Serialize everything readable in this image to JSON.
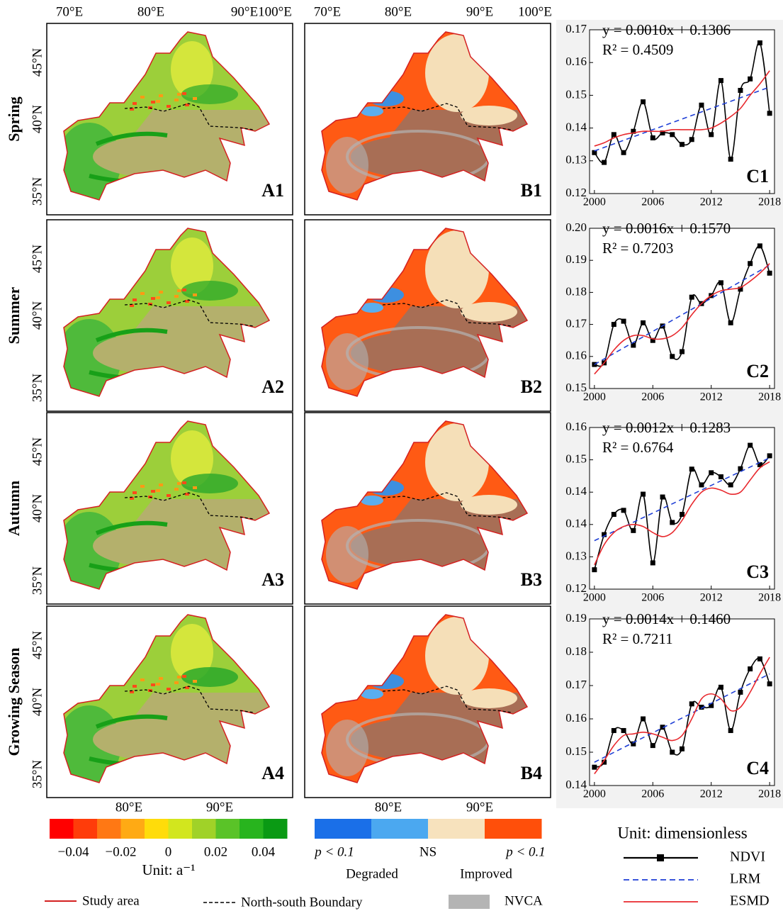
{
  "maps": {
    "top_lon": [
      "70°E",
      "80°E",
      "90°E",
      "100°E"
    ],
    "bottom_lon": [
      "80°E",
      "90°E"
    ],
    "lat": [
      "45°N",
      "40°N",
      "35°N"
    ],
    "rows": [
      {
        "season": "Spring",
        "a_label": "A1",
        "b_label": "B1"
      },
      {
        "season": "Summer",
        "a_label": "A2",
        "b_label": "B2"
      },
      {
        "season": "Autumn",
        "a_label": "A3",
        "b_label": "B3"
      },
      {
        "season": "Growing Season",
        "a_label": "A4",
        "b_label": "B4"
      }
    ]
  },
  "chart_data": [
    {
      "type": "line",
      "label": "C1",
      "equation": "y = 0.0010x + 0.1306",
      "r2": "R² = 0.4509",
      "x": [
        2000,
        2001,
        2002,
        2003,
        2004,
        2005,
        2006,
        2007,
        2008,
        2009,
        2010,
        2011,
        2012,
        2013,
        2014,
        2015,
        2016,
        2017,
        2018
      ],
      "xlim": [
        1999.5,
        2018.5
      ],
      "xticks": [
        2000,
        2006,
        2012,
        2018
      ],
      "ylim": [
        0.12,
        0.17
      ],
      "yticks": [
        0.12,
        0.13,
        0.14,
        0.15,
        0.16,
        0.17
      ],
      "series": [
        {
          "name": "NDVI",
          "color": "#000000",
          "values": [
            0.1325,
            0.1295,
            0.138,
            0.1325,
            0.139,
            0.148,
            0.137,
            0.1385,
            0.138,
            0.135,
            0.1365,
            0.147,
            0.138,
            0.1545,
            0.1305,
            0.1515,
            0.155,
            0.166,
            0.1445
          ]
        },
        {
          "name": "LRM",
          "color": "#1f3fd6",
          "x": [
            2000,
            2018
          ],
          "values": [
            0.133,
            0.1525
          ]
        },
        {
          "name": "ESMD",
          "color": "#e8282d",
          "values": [
            0.1345,
            0.1355,
            0.137,
            0.138,
            0.1385,
            0.139,
            0.139,
            0.139,
            0.1395,
            0.1395,
            0.1395,
            0.1395,
            0.14,
            0.1415,
            0.1435,
            0.146,
            0.15,
            0.1535,
            0.1575
          ]
        }
      ]
    },
    {
      "type": "line",
      "label": "C2",
      "equation": "y = 0.0016x + 0.1570",
      "r2": "R² = 0.7203",
      "x": [
        2000,
        2001,
        2002,
        2003,
        2004,
        2005,
        2006,
        2007,
        2008,
        2009,
        2010,
        2011,
        2012,
        2013,
        2014,
        2015,
        2016,
        2017,
        2018
      ],
      "xlim": [
        1999.5,
        2018.5
      ],
      "xticks": [
        2000,
        2006,
        2012,
        2018
      ],
      "ylim": [
        0.15,
        0.2
      ],
      "yticks": [
        0.15,
        0.16,
        0.17,
        0.18,
        0.19,
        {
          "value": 0.2,
          "label": "0.20"
        }
      ],
      "series": [
        {
          "name": "NDVI",
          "color": "#000000",
          "values": [
            0.1575,
            0.158,
            0.17,
            0.171,
            0.1635,
            0.1705,
            0.165,
            0.1695,
            0.16,
            0.1615,
            0.1785,
            0.1765,
            0.179,
            0.183,
            0.1705,
            0.181,
            0.189,
            0.1945,
            0.186
          ]
        },
        {
          "name": "LRM",
          "color": "#1f3fd6",
          "x": [
            2000,
            2018
          ],
          "values": [
            0.1575,
            0.1885
          ]
        },
        {
          "name": "ESMD",
          "color": "#e8282d",
          "values": [
            0.1545,
            0.158,
            0.162,
            0.165,
            0.1665,
            0.1665,
            0.1655,
            0.1655,
            0.1665,
            0.169,
            0.173,
            0.1765,
            0.179,
            0.1805,
            0.181,
            0.1815,
            0.1835,
            0.186,
            0.189
          ]
        }
      ]
    },
    {
      "type": "line",
      "label": "C3",
      "equation": "y = 0.0012x + 0.1283",
      "r2": "R² = 0.6764",
      "x": [
        2000,
        2001,
        2002,
        2003,
        2004,
        2005,
        2006,
        2007,
        2008,
        2009,
        2010,
        2011,
        2012,
        2013,
        2014,
        2015,
        2016,
        2017,
        2018
      ],
      "xlim": [
        1999.5,
        2018.5
      ],
      "xticks": [
        2000,
        2006,
        2012,
        2018
      ],
      "ylim": [
        0.12,
        0.16
      ],
      "yticks": [
        0.12,
        {
          "value": 0.128,
          "label": "0.13"
        },
        {
          "value": 0.136,
          "label": "0.14"
        },
        {
          "value": 0.144,
          "label": "0.14"
        },
        {
          "value": 0.152,
          "label": "0.15"
        },
        0.16
      ],
      "series": [
        {
          "name": "NDVI",
          "color": "#000000",
          "values": [
            0.1248,
            0.1335,
            0.1385,
            0.1395,
            0.1345,
            0.1435,
            0.1265,
            0.1428,
            0.1365,
            0.1385,
            0.1497,
            0.1458,
            0.1488,
            0.1478,
            0.1458,
            0.1498,
            0.1556,
            0.1508,
            0.153
          ]
        },
        {
          "name": "LRM",
          "color": "#1f3fd6",
          "x": [
            2000,
            2018
          ],
          "values": [
            0.132,
            0.1525
          ]
        },
        {
          "name": "ESMD",
          "color": "#e8282d",
          "values": [
            0.126,
            0.131,
            0.134,
            0.1355,
            0.136,
            0.1355,
            0.134,
            0.133,
            0.134,
            0.137,
            0.141,
            0.144,
            0.145,
            0.1445,
            0.1435,
            0.144,
            0.147,
            0.15,
            0.1515
          ]
        }
      ]
    },
    {
      "type": "line",
      "label": "C4",
      "equation": "y = 0.0014x + 0.1460",
      "r2": "R² = 0.7211",
      "x": [
        2000,
        2001,
        2002,
        2003,
        2004,
        2005,
        2006,
        2007,
        2008,
        2009,
        2010,
        2011,
        2012,
        2013,
        2014,
        2015,
        2016,
        2017,
        2018
      ],
      "xlim": [
        1999.5,
        2018.5
      ],
      "xticks": [
        2000,
        2006,
        2012,
        2018
      ],
      "ylim": [
        0.14,
        0.19
      ],
      "yticks": [
        0.14,
        0.15,
        0.16,
        0.17,
        0.18,
        0.19
      ],
      "series": [
        {
          "name": "NDVI",
          "color": "#000000",
          "values": [
            0.1455,
            0.147,
            0.1565,
            0.1565,
            0.1525,
            0.16,
            0.152,
            0.1575,
            0.15,
            0.151,
            0.1645,
            0.1635,
            0.164,
            0.1695,
            0.1565,
            0.168,
            0.175,
            0.178,
            0.1705
          ]
        },
        {
          "name": "LRM",
          "color": "#1f3fd6",
          "x": [
            2000,
            2018
          ],
          "values": [
            0.147,
            0.1735
          ]
        },
        {
          "name": "ESMD",
          "color": "#e8282d",
          "values": [
            0.1435,
            0.1475,
            0.152,
            0.155,
            0.1555,
            0.156,
            0.1555,
            0.1545,
            0.1535,
            0.155,
            0.16,
            0.166,
            0.1675,
            0.166,
            0.1625,
            0.1635,
            0.168,
            0.1735,
            0.1785
          ]
        }
      ]
    }
  ],
  "legend": {
    "colorbar_a": {
      "range": [
        -0.05,
        0.05
      ],
      "colors": [
        "#ff0000",
        "#ff3c0a",
        "#ff7814",
        "#ffaa14",
        "#ffdc0a",
        "#d2e61e",
        "#a0d228",
        "#5ac328",
        "#28b41e",
        "#0a9a14"
      ],
      "ticks": [
        {
          "value": -0.04,
          "label": "−0.04"
        },
        {
          "value": -0.02,
          "label": "−0.02"
        },
        0,
        {
          "value": 0.02,
          "label": "0.02"
        },
        {
          "value": 0.04,
          "label": "0.04"
        }
      ],
      "unit": "Unit: a⁻¹"
    },
    "colorbar_b": {
      "colors": [
        "#1a6fe8",
        "#4ba8f0",
        "#f7e2bd",
        "#ff4f0a"
      ],
      "left": "p < 0.1",
      "middle": "NS",
      "right": "p < 0.1",
      "degraded": "Degraded",
      "improved": "Improved"
    },
    "study_area": "Study area",
    "boundary": "North-south Boundary",
    "nvca": "NVCA",
    "unit_c": "Unit: dimensionless"
  }
}
